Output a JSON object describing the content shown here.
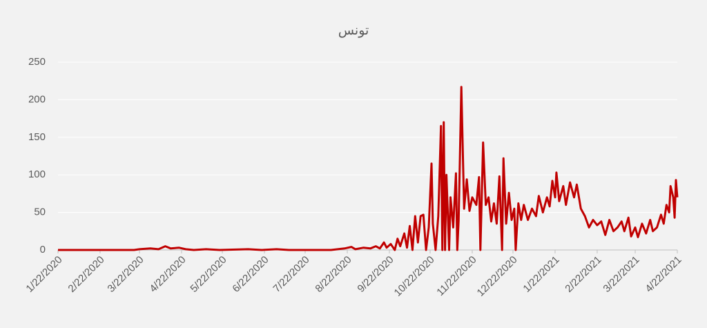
{
  "chart_data": {
    "type": "line",
    "title": "تونس",
    "color": "#c00000",
    "grid": true,
    "ylim": [
      0,
      250
    ],
    "yticks": [
      0,
      50,
      100,
      150,
      200,
      250
    ],
    "xlim": [
      "1/22/2020",
      "4/22/2021"
    ],
    "xticks": [
      "1/22/2020",
      "2/22/2020",
      "3/22/2020",
      "4/22/2020",
      "5/22/2020",
      "6/22/2020",
      "7/22/2020",
      "8/22/2020",
      "9/22/2020",
      "10/22/2020",
      "11/22/2020",
      "12/22/2020",
      "1/22/2021",
      "2/22/2021",
      "3/22/2021",
      "4/22/2021"
    ],
    "x": [
      "1/22/2020",
      "3/18/2020",
      "3/22/2020",
      "3/30/2020",
      "4/5/2020",
      "4/10/2020",
      "4/14/2020",
      "4/20/2020",
      "4/25/2020",
      "5/1/2020",
      "5/10/2020",
      "5/20/2020",
      "6/10/2020",
      "6/20/2020",
      "7/1/2020",
      "7/10/2020",
      "8/10/2020",
      "8/15/2020",
      "8/20/2020",
      "8/25/2020",
      "8/28/2020",
      "9/3/2020",
      "9/8/2020",
      "9/12/2020",
      "9/15/2020",
      "9/18/2020",
      "9/20/2020",
      "9/23/2020",
      "9/26/2020",
      "9/28/2020",
      "9/30/2020",
      "10/3/2020",
      "10/5/2020",
      "10/7/2020",
      "10/9/2020",
      "10/11/2020",
      "10/13/2020",
      "10/15/2020",
      "10/17/2020",
      "10/19/2020",
      "10/21/2020",
      "10/23/2020",
      "10/24/2020",
      "10/26/2020",
      "10/28/2020",
      "10/30/2020",
      "10/31/2020",
      "11/1/2020",
      "11/2/2020",
      "11/3/2020",
      "11/5/2020",
      "11/6/2020",
      "11/8/2020",
      "11/10/2020",
      "11/11/2020",
      "11/12/2020",
      "11/14/2020",
      "11/16/2020",
      "11/18/2020",
      "11/20/2020",
      "11/22/2020",
      "11/25/2020",
      "11/27/2020",
      "11/28/2020",
      "11/30/2020",
      "12/2/2020",
      "12/4/2020",
      "12/6/2020",
      "12/8/2020",
      "12/10/2020",
      "12/12/2020",
      "12/14/2020",
      "12/15/2020",
      "12/17/2020",
      "12/19/2020",
      "12/21/2020",
      "12/23/2020",
      "12/24/2020",
      "12/26/2020",
      "12/28/2020",
      "12/30/2020",
      "1/2/2021",
      "1/5/2021",
      "1/8/2021",
      "1/10/2021",
      "1/13/2021",
      "1/16/2021",
      "1/18/2021",
      "1/20/2021",
      "1/22/2021",
      "1/23/2021",
      "1/25/2021",
      "1/28/2021",
      "1/30/2021",
      "2/2/2021",
      "2/5/2021",
      "2/7/2021",
      "2/10/2021",
      "2/13/2021",
      "2/16/2021",
      "2/19/2021",
      "2/22/2021",
      "2/25/2021",
      "2/28/2021",
      "3/3/2021",
      "3/6/2021",
      "3/9/2021",
      "3/12/2021",
      "3/14/2021",
      "3/17/2021",
      "3/19/2021",
      "3/22/2021",
      "3/24/2021",
      "3/27/2021",
      "3/30/2021",
      "4/2/2021",
      "4/4/2021",
      "4/7/2021",
      "4/10/2021",
      "4/12/2021",
      "4/14/2021",
      "4/16/2021",
      "4/17/2021",
      "4/19/2021",
      "4/20/2021",
      "4/21/2021",
      "4/22/2021"
    ],
    "values": [
      0,
      0,
      1,
      2,
      1,
      5,
      2,
      3,
      1,
      0,
      1,
      0,
      1,
      0,
      1,
      0,
      0,
      1,
      2,
      4,
      1,
      3,
      2,
      5,
      2,
      10,
      3,
      8,
      0,
      15,
      5,
      22,
      3,
      32,
      0,
      45,
      10,
      45,
      47,
      0,
      30,
      115,
      35,
      0,
      45,
      165,
      0,
      170,
      0,
      100,
      0,
      70,
      30,
      102,
      0,
      40,
      217,
      55,
      94,
      52,
      70,
      60,
      97,
      0,
      143,
      60,
      70,
      38,
      62,
      35,
      98,
      0,
      122,
      35,
      76,
      40,
      55,
      0,
      62,
      40,
      60,
      40,
      55,
      45,
      72,
      50,
      70,
      58,
      92,
      70,
      103,
      65,
      85,
      60,
      90,
      70,
      87,
      55,
      45,
      30,
      40,
      33,
      38,
      20,
      40,
      25,
      30,
      38,
      25,
      43,
      18,
      30,
      17,
      35,
      22,
      40,
      25,
      30,
      47,
      35,
      60,
      50,
      85,
      70,
      43,
      93,
      70
    ]
  }
}
